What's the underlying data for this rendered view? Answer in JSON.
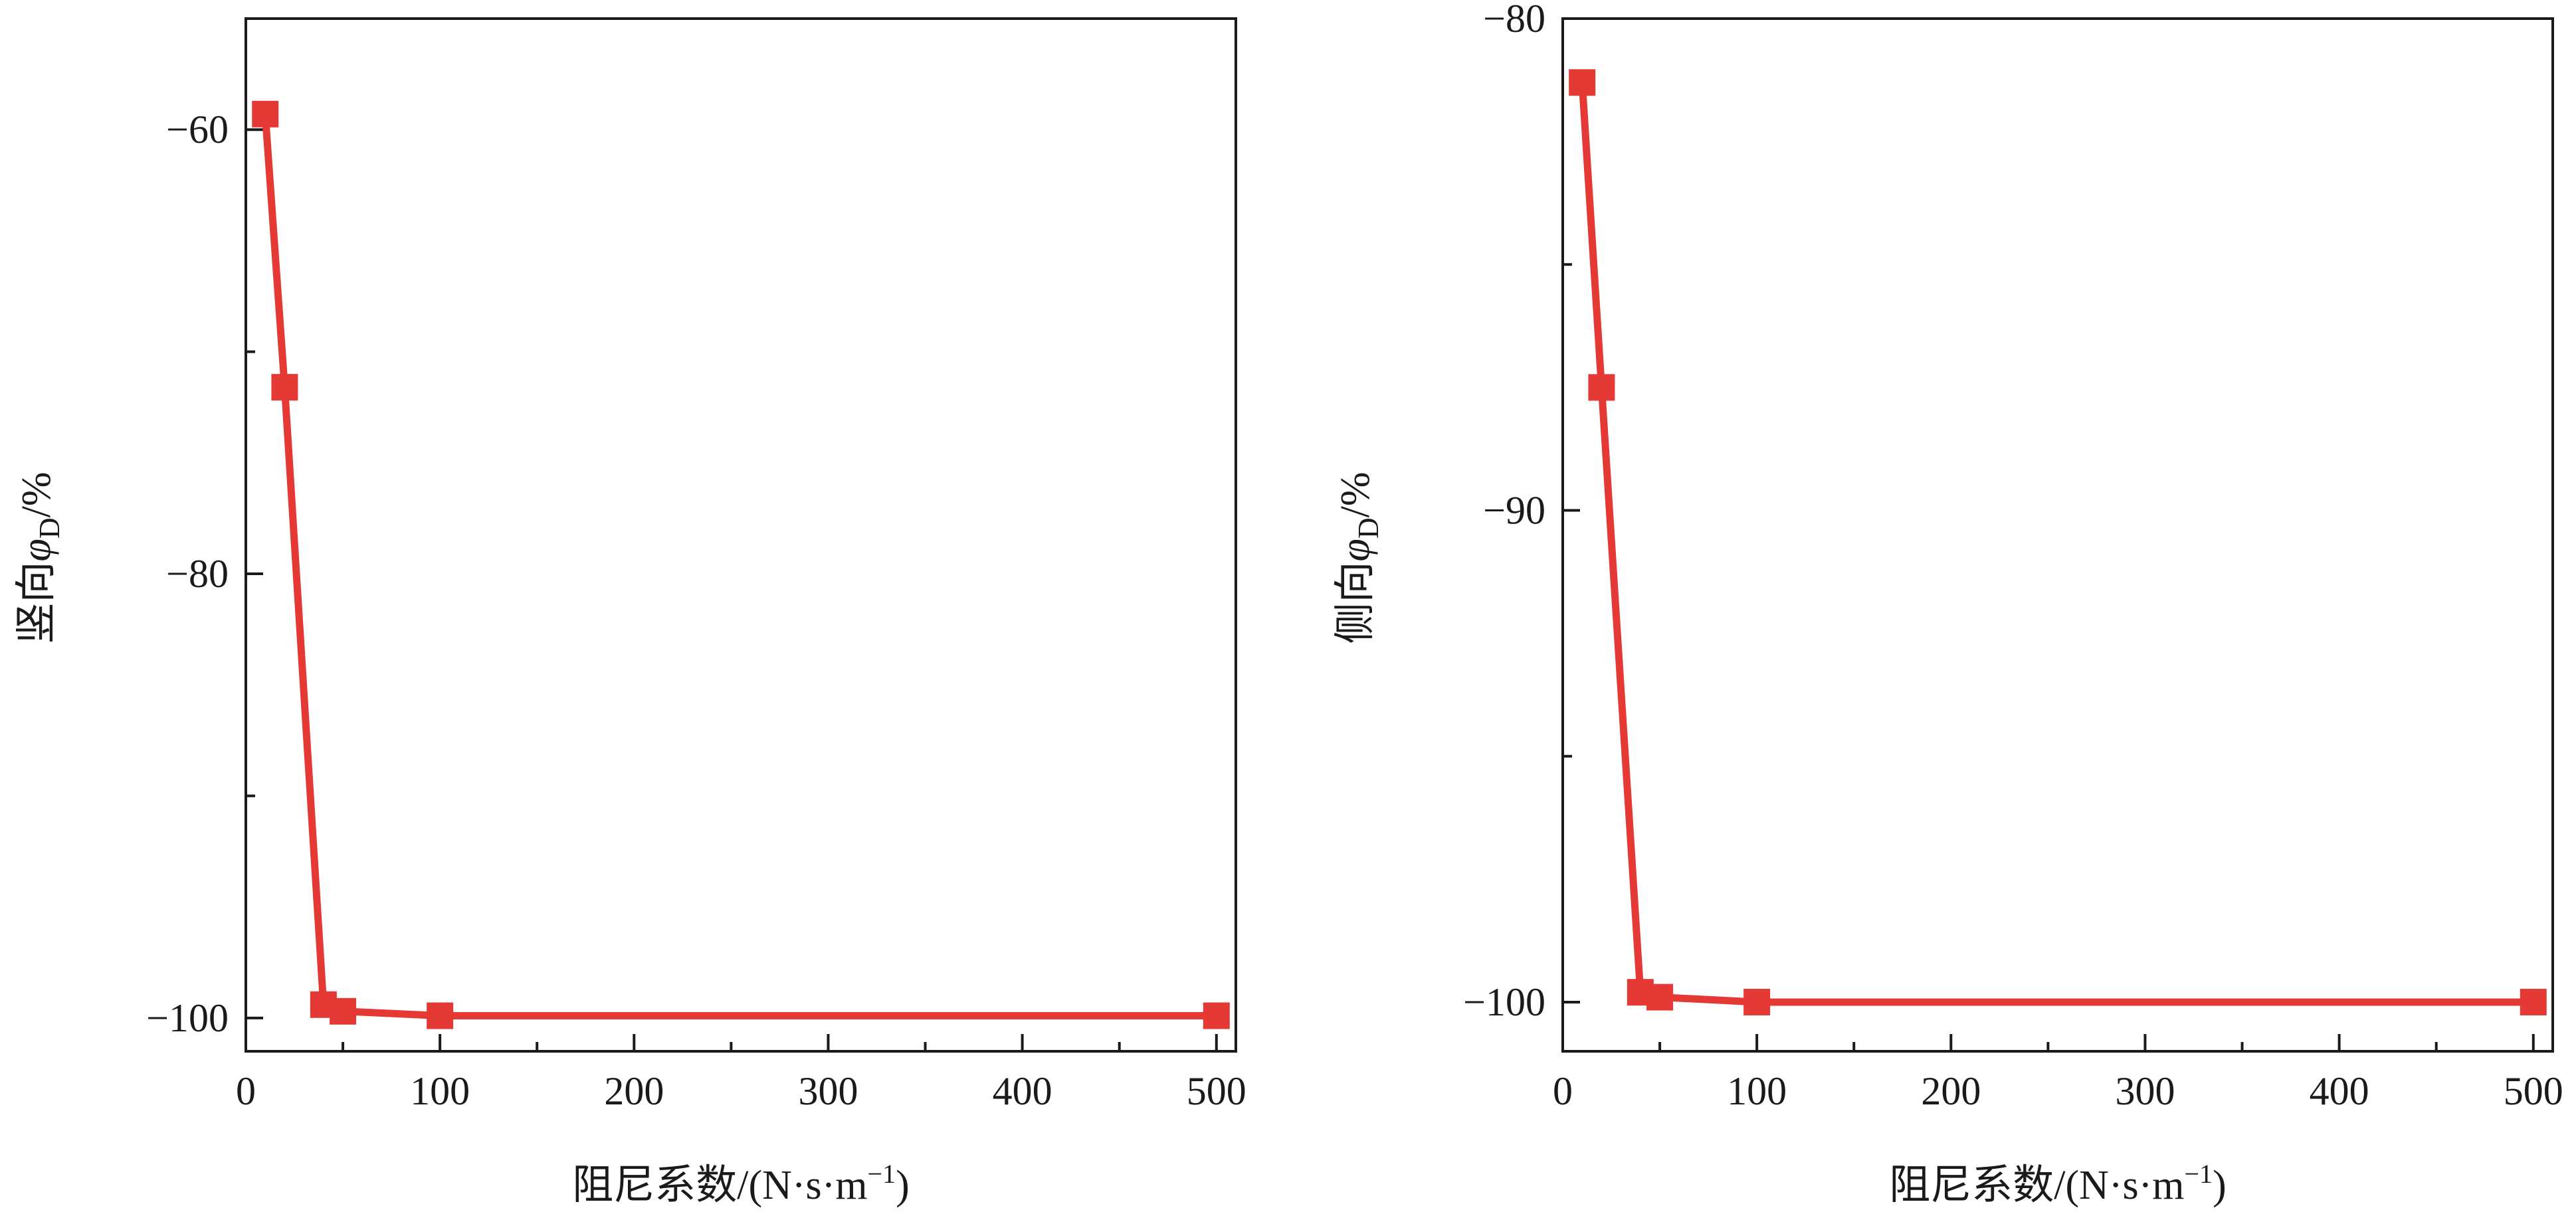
{
  "chart_data": [
    {
      "type": "line",
      "ylabel": {
        "prefix": "竖向",
        "symbol": "φ",
        "subscript": "D",
        "suffix": "/%"
      },
      "xlabel": {
        "text": "阻尼系数/(N·s·m",
        "sup": "−1",
        "close": ")"
      },
      "xlim": [
        0,
        510
      ],
      "ylim": [
        -101.5,
        -55
      ],
      "xticks": [
        0,
        100,
        200,
        300,
        400,
        500
      ],
      "xtick_labels": [
        "0",
        "100",
        "200",
        "300",
        "400",
        "500"
      ],
      "yticks": [
        -60,
        -80,
        -100
      ],
      "ytick_labels": [
        "−60",
        "−80",
        "−100"
      ],
      "minor_xticks": [
        50,
        150,
        250,
        350,
        450
      ],
      "minor_yticks": [
        -70,
        -90
      ],
      "grid": false,
      "series": [
        {
          "x": [
            10,
            20,
            40,
            50,
            100,
            500
          ],
          "y": [
            -59.3,
            -71.6,
            -99.4,
            -99.7,
            -99.9,
            -99.9
          ],
          "color": "#e53935",
          "marker": "square"
        }
      ]
    },
    {
      "type": "line",
      "ylabel": {
        "prefix": "侧向",
        "symbol": "φ",
        "subscript": "D",
        "suffix": "/%"
      },
      "xlabel": {
        "text": "阻尼系数/(N·s·m",
        "sup": "−1",
        "close": ")"
      },
      "xlim": [
        0,
        510
      ],
      "ylim": [
        -101,
        -80
      ],
      "xticks": [
        0,
        100,
        200,
        300,
        400,
        500
      ],
      "xtick_labels": [
        "0",
        "100",
        "200",
        "300",
        "400",
        "500"
      ],
      "yticks": [
        -80,
        -90,
        -100
      ],
      "ytick_labels": [
        "−80",
        "−90",
        "−100"
      ],
      "minor_xticks": [
        50,
        150,
        250,
        350,
        450
      ],
      "minor_yticks": [
        -85,
        -95
      ],
      "grid": false,
      "series": [
        {
          "x": [
            10,
            20,
            40,
            50,
            100,
            500
          ],
          "y": [
            -81.3,
            -87.5,
            -99.8,
            -99.9,
            -100.0,
            -100.0
          ],
          "color": "#e53935",
          "marker": "square"
        }
      ]
    }
  ]
}
